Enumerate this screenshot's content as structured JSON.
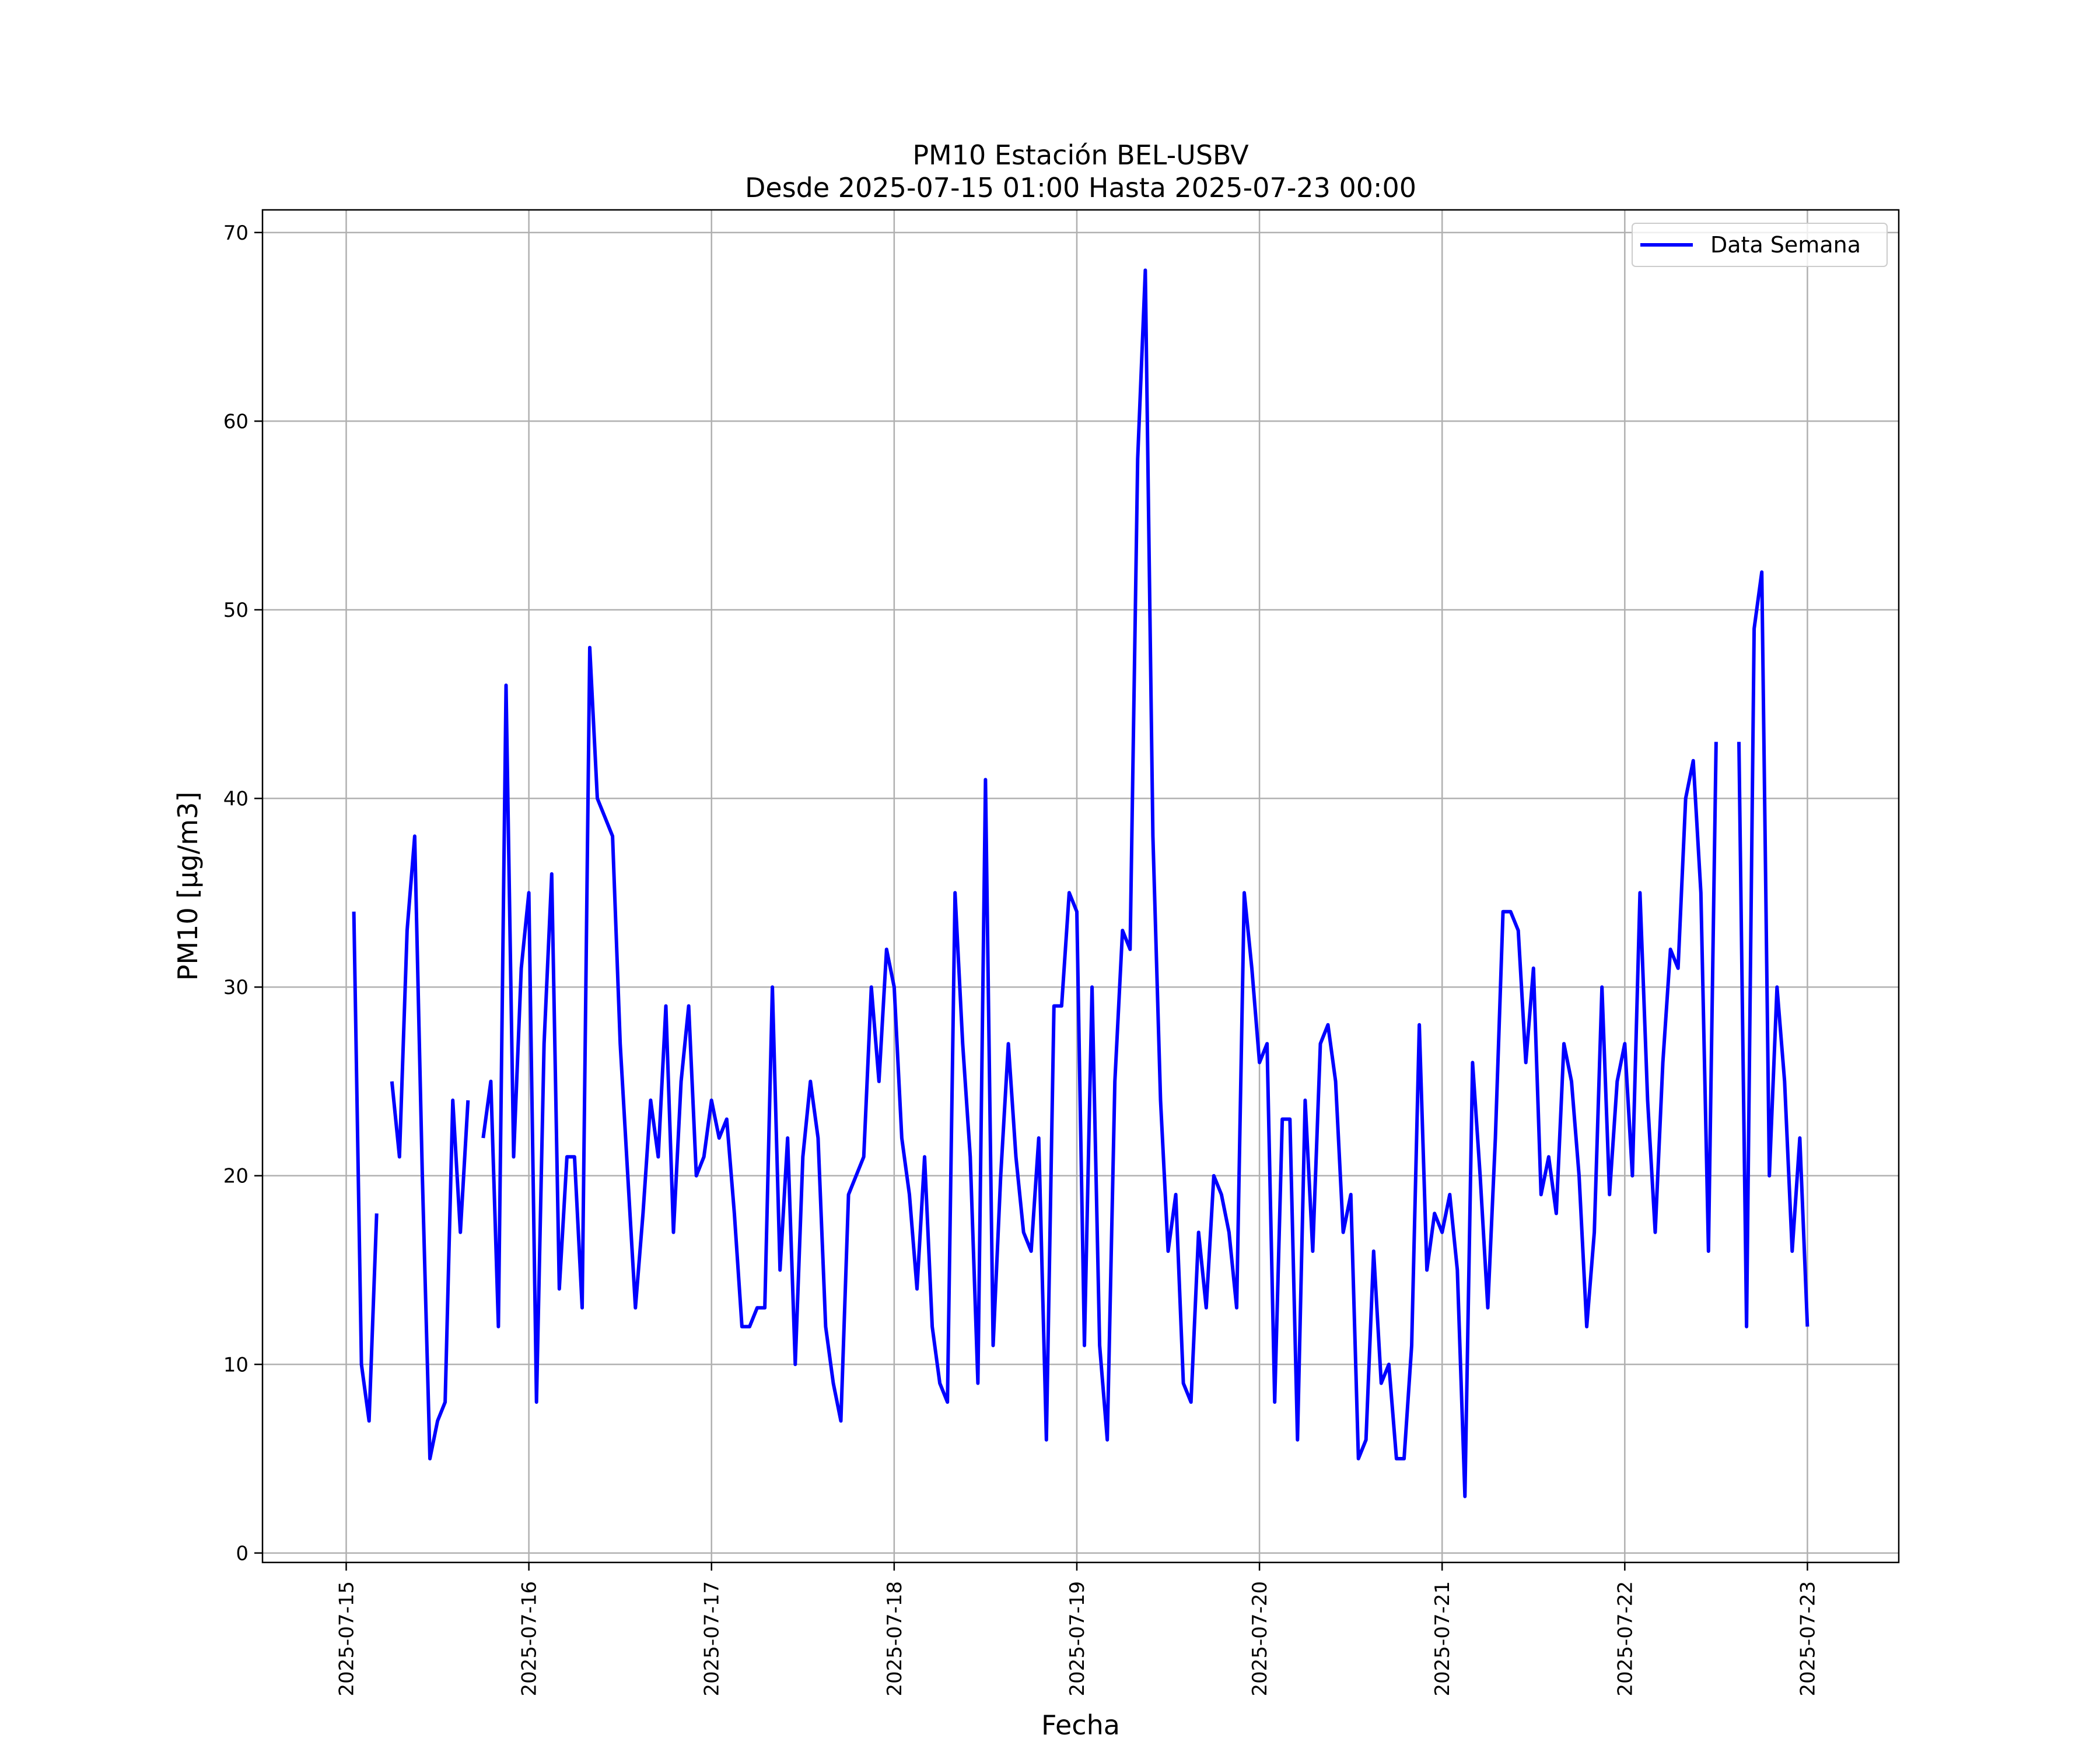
{
  "chart_data": {
    "type": "line",
    "title": "PM10 Estación BEL-USBV",
    "subtitle": "Desde 2025-07-15 01:00 Hasta 2025-07-23 00:00",
    "xlabel": "Fecha",
    "ylabel": "PM10 [μg/m3]",
    "x_start": "2025-07-15 01:00",
    "x_end": "2025-07-23 00:00",
    "x_interval_hours": 1,
    "xlim": [
      "2025-07-14 13:00",
      "2025-07-23 12:00"
    ],
    "ylim": [
      -0.5,
      71.2
    ],
    "yticks": [
      0,
      10,
      20,
      30,
      40,
      50,
      60,
      70
    ],
    "xticks": [
      "2025-07-15",
      "2025-07-16",
      "2025-07-17",
      "2025-07-18",
      "2025-07-19",
      "2025-07-20",
      "2025-07-21",
      "2025-07-22",
      "2025-07-23"
    ],
    "grid": true,
    "legend_position": "top-right",
    "color": "#0000ff",
    "series": [
      {
        "name": "Data Semana",
        "values": [
          34,
          10,
          7,
          18,
          null,
          25,
          21,
          33,
          38,
          20,
          5,
          7,
          8,
          24,
          17,
          24,
          null,
          22,
          25,
          12,
          46,
          21,
          31,
          35,
          8,
          27,
          36,
          14,
          21,
          21,
          13,
          48,
          40,
          39,
          38,
          27,
          20,
          13,
          18,
          24,
          21,
          29,
          17,
          25,
          29,
          20,
          21,
          24,
          22,
          23,
          18,
          12,
          12,
          13,
          13,
          30,
          15,
          22,
          10,
          21,
          25,
          22,
          12,
          9,
          7,
          19,
          20,
          21,
          30,
          25,
          32,
          30,
          22,
          19,
          14,
          21,
          12,
          9,
          8,
          35,
          27,
          21,
          9,
          41,
          11,
          20,
          27,
          21,
          17,
          16,
          22,
          6,
          29,
          29,
          35,
          34,
          11,
          30,
          11,
          6,
          25,
          33,
          32,
          58,
          68,
          38,
          24,
          16,
          19,
          9,
          8,
          17,
          13,
          20,
          19,
          17,
          13,
          35,
          31,
          26,
          27,
          8,
          23,
          23,
          6,
          24,
          16,
          27,
          28,
          25,
          17,
          19,
          5,
          6,
          16,
          9,
          10,
          5,
          5,
          11,
          28,
          15,
          18,
          17,
          19,
          15,
          3,
          26,
          20,
          13,
          22,
          34,
          34,
          33,
          26,
          31,
          19,
          21,
          18,
          27,
          25,
          20,
          12,
          17,
          30,
          19,
          25,
          27,
          20,
          35,
          24,
          17,
          26,
          32,
          31,
          40,
          42,
          35,
          16,
          43,
          null,
          null,
          43,
          12,
          49,
          52,
          20,
          30,
          25,
          16,
          22,
          12
        ]
      }
    ]
  }
}
